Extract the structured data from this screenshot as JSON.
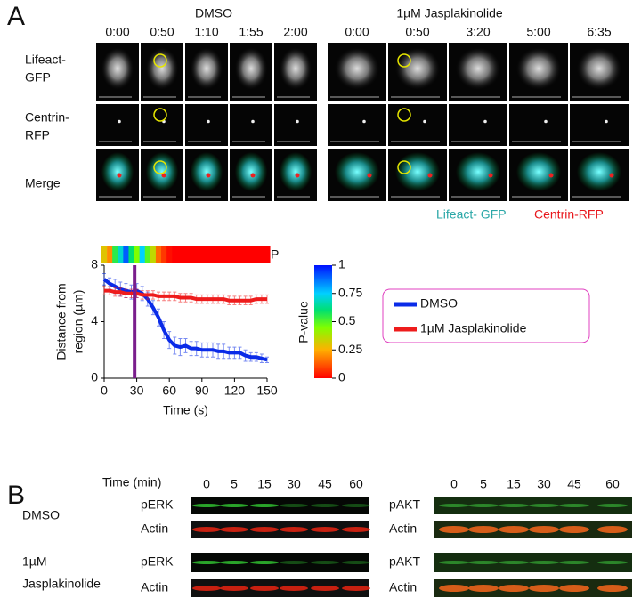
{
  "panel_labels": [
    "A",
    "B"
  ],
  "imaging": {
    "groups": [
      {
        "title": "DMSO",
        "times": [
          "0:00",
          "0:50",
          "1:10",
          "1:55",
          "2:00"
        ]
      },
      {
        "title": "1µM Jasplakinolide",
        "times": [
          "0:00",
          "0:50",
          "3:20",
          "5:00",
          "6:35"
        ]
      }
    ],
    "rows": [
      [
        "Lifeact-",
        "GFP"
      ],
      [
        "Centrin-",
        "RFP"
      ],
      [
        "Merge"
      ]
    ],
    "legend": [
      {
        "text": "Lifeact- GFP",
        "color": "#2aa7a7"
      },
      {
        "text": "Centrin-RFP",
        "color": "#e8161b"
      }
    ]
  },
  "chart_data": {
    "type": "line",
    "xlabel": "Time (s)",
    "ylabel": [
      "Distance from",
      "region (µm)"
    ],
    "x": [
      0,
      5,
      10,
      15,
      20,
      25,
      30,
      35,
      40,
      45,
      50,
      55,
      60,
      65,
      70,
      75,
      80,
      85,
      90,
      95,
      100,
      105,
      110,
      115,
      120,
      125,
      130,
      135,
      140,
      145,
      150
    ],
    "series": [
      {
        "name": "DMSO",
        "color": "#0a2be8",
        "values": [
          7.0,
          6.7,
          6.5,
          6.3,
          6.2,
          6.1,
          6.2,
          6.0,
          5.6,
          5.0,
          4.3,
          3.4,
          2.7,
          2.3,
          2.2,
          2.3,
          2.1,
          2.1,
          2.0,
          2.0,
          2.0,
          1.9,
          1.9,
          1.8,
          1.8,
          1.8,
          1.6,
          1.5,
          1.5,
          1.4,
          1.3
        ],
        "errors": [
          0.4,
          0.4,
          0.5,
          0.5,
          0.5,
          0.5,
          0.5,
          0.5,
          0.5,
          0.5,
          0.6,
          0.6,
          0.6,
          0.6,
          0.6,
          0.5,
          0.5,
          0.5,
          0.5,
          0.5,
          0.5,
          0.5,
          0.5,
          0.4,
          0.4,
          0.4,
          0.4,
          0.3,
          0.3,
          0.3,
          0.2
        ]
      },
      {
        "name": "1µM Jasplakinolide",
        "color": "#ee1c1c",
        "values": [
          6.2,
          6.2,
          6.1,
          6.1,
          6.0,
          6.0,
          6.0,
          5.9,
          5.9,
          5.9,
          5.8,
          5.8,
          5.8,
          5.8,
          5.7,
          5.7,
          5.7,
          5.6,
          5.6,
          5.6,
          5.6,
          5.6,
          5.6,
          5.5,
          5.5,
          5.5,
          5.5,
          5.5,
          5.6,
          5.6,
          5.6
        ],
        "errors": [
          0.3,
          0.3,
          0.3,
          0.3,
          0.3,
          0.3,
          0.3,
          0.3,
          0.3,
          0.3,
          0.3,
          0.3,
          0.3,
          0.3,
          0.3,
          0.3,
          0.3,
          0.3,
          0.3,
          0.3,
          0.3,
          0.3,
          0.3,
          0.3,
          0.3,
          0.3,
          0.3,
          0.3,
          0.3,
          0.3,
          0.3
        ]
      }
    ],
    "xlim": [
      0,
      150
    ],
    "xticks": [
      0,
      30,
      60,
      90,
      120,
      150
    ],
    "ylim": [
      0,
      8
    ],
    "yticks": [
      0,
      4,
      8
    ],
    "vline": {
      "x": 28,
      "color": "#7a1e8c"
    },
    "p_values": [
      0.3,
      0.2,
      0.55,
      0.7,
      0.9,
      0.6,
      0.45,
      0.75,
      0.5,
      0.35,
      0.15,
      0.08,
      0.02,
      0,
      0,
      0,
      0,
      0,
      0,
      0,
      0,
      0,
      0,
      0,
      0,
      0,
      0,
      0,
      0,
      0,
      0
    ],
    "strip_label": "P",
    "colorbar": {
      "label": "P-value",
      "lim": [
        0,
        1
      ],
      "ticks": [
        0,
        0.25,
        0.5,
        0.75,
        1
      ]
    }
  },
  "blot": {
    "time_label": "Time (min)",
    "times": [
      "0",
      "5",
      "15",
      "30",
      "45",
      "60"
    ],
    "conditions": [
      [
        "DMSO"
      ],
      [
        "1µM",
        "Jasplakinolide"
      ]
    ],
    "left_labels": [
      [
        "pERK",
        "Actin"
      ],
      [
        "pERK",
        "Actin"
      ]
    ],
    "right_labels": [
      [
        "pAKT",
        "Actin"
      ],
      [
        "pAKT",
        "Actin"
      ]
    ]
  }
}
